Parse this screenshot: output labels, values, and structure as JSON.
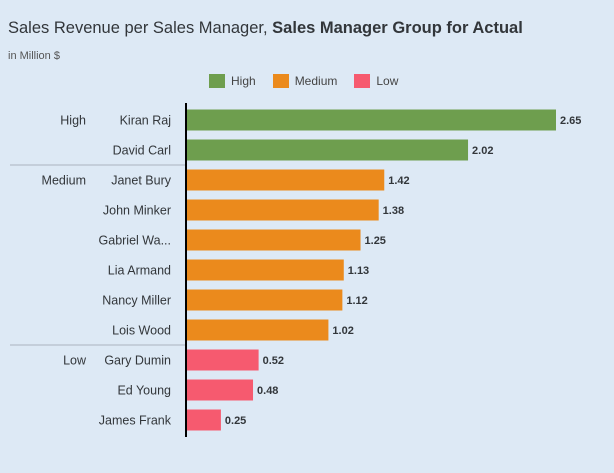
{
  "title_main": "Sales Revenue per Sales Manager, ",
  "title_bold": "Sales Manager Group for Actual",
  "subtitle": "in Million $",
  "legend": [
    {
      "name": "High",
      "color": "#6e9e4e"
    },
    {
      "name": "Medium",
      "color": "#eb8a1c"
    },
    {
      "name": "Low",
      "color": "#f65a6f"
    }
  ],
  "chart_data": {
    "type": "bar",
    "orientation": "horizontal",
    "grouped_by": "Sales Manager Group",
    "groups": [
      {
        "name": "High",
        "color": "#6e9e4e",
        "categories": [
          "Kiran Raj",
          "David Carl"
        ],
        "values": [
          2.65,
          2.02
        ]
      },
      {
        "name": "Medium",
        "color": "#eb8a1c",
        "categories": [
          "Janet Bury",
          "John Minker",
          "Gabriel Wa...",
          "Lia Armand",
          "Nancy Miller",
          "Lois Wood"
        ],
        "values": [
          1.42,
          1.38,
          1.25,
          1.13,
          1.12,
          1.02
        ]
      },
      {
        "name": "Low",
        "color": "#f65a6f",
        "categories": [
          "Gary Dumin",
          "Ed Young",
          "James Frank"
        ],
        "values": [
          0.52,
          0.48,
          0.25
        ]
      }
    ],
    "value_unit": "Million $",
    "legend_position": "top",
    "grid": false
  }
}
